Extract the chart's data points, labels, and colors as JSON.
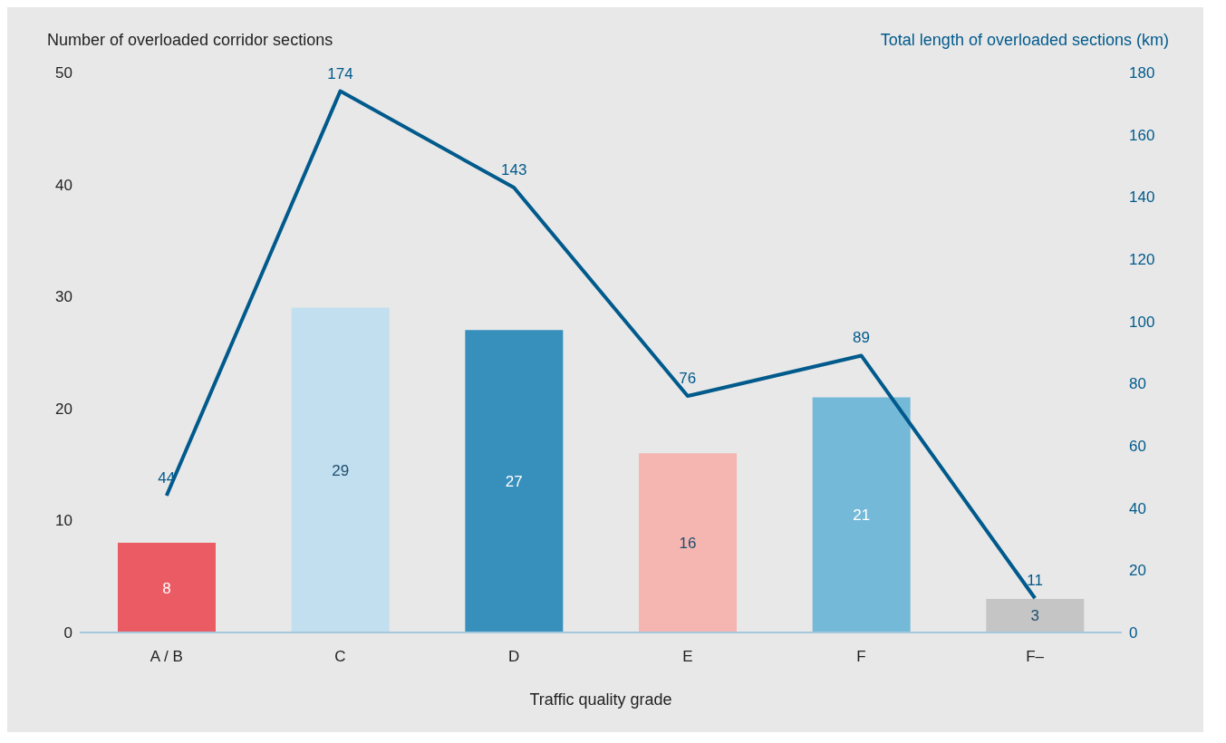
{
  "chart_data": {
    "type": "bar",
    "xlabel": "Traffic quality grade",
    "ylabel": "Number of overloaded corridor sections",
    "y2label": "Total length of overloaded sections (km)",
    "categories": [
      "A / B",
      "C",
      "D",
      "E",
      "F",
      "F–"
    ],
    "series": [
      {
        "colors": [
          "#eb5b63",
          "#c1dfee",
          "#378fbc",
          "#f5b5b0",
          "#74b9d7",
          "#c5c5c5"
        ],
        "values": [
          8,
          29,
          27,
          16,
          21,
          3
        ]
      },
      {
        "type": "line",
        "axis": "y2",
        "color": "#005a8c",
        "values": [
          44,
          174,
          143,
          76,
          89,
          11
        ]
      }
    ],
    "ylim": [
      0,
      50
    ],
    "yticks": [
      0,
      10,
      20,
      30,
      40,
      50
    ],
    "y2lim": [
      0,
      180
    ],
    "y2ticks": [
      0,
      20,
      40,
      60,
      80,
      100,
      120,
      140,
      160,
      180
    ],
    "data_labels": true
  }
}
